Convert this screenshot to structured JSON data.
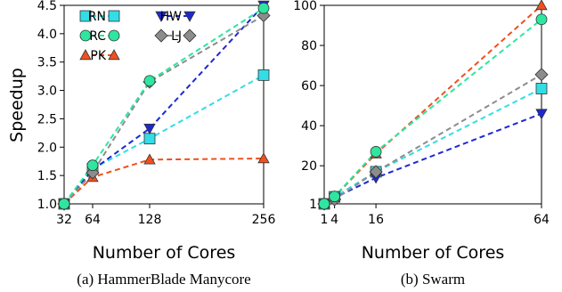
{
  "colors": {
    "RN": "#33dde6",
    "RC": "#2ee6a0",
    "PK": "#f0501e",
    "HW": "#1e28d2",
    "LJ": "#8c8c8c"
  },
  "chart_data": [
    {
      "type": "line",
      "caption": "(a) HammerBlade Manycore",
      "xlabel": "Number of Cores",
      "ylabel": "Speedup",
      "xlim": [
        32,
        256
      ],
      "ylim": [
        1.0,
        4.5
      ],
      "xticks": [
        "32",
        "64",
        "128",
        "256"
      ],
      "xtick_values": [
        32,
        64,
        128,
        256
      ],
      "yticks": [
        "1.0",
        "1.5",
        "2.0",
        "2.5",
        "3.0",
        "3.5",
        "4.0",
        "4.5"
      ],
      "ytick_values": [
        1.0,
        1.5,
        2.0,
        2.5,
        3.0,
        3.5,
        4.0,
        4.5
      ],
      "x": [
        32,
        64,
        128,
        256
      ],
      "legend": "top-left",
      "series": [
        {
          "name": "RN",
          "marker": "square",
          "values": [
            1.0,
            1.62,
            2.15,
            3.27
          ]
        },
        {
          "name": "RC",
          "marker": "circle",
          "values": [
            1.0,
            1.68,
            3.17,
            4.45
          ]
        },
        {
          "name": "PK",
          "marker": "triangle-up",
          "values": [
            1.0,
            1.47,
            1.78,
            1.8
          ]
        },
        {
          "name": "HW",
          "marker": "triangle-down",
          "values": [
            1.0,
            1.6,
            2.33,
            4.5
          ]
        },
        {
          "name": "LJ",
          "marker": "diamond",
          "values": [
            1.0,
            1.55,
            3.15,
            4.32
          ]
        }
      ]
    },
    {
      "type": "line",
      "caption": "(b) Swarm",
      "xlabel": "Number of Cores",
      "ylabel": "",
      "xlim": [
        1,
        64
      ],
      "ylim": [
        1,
        100
      ],
      "xticks": [
        "1",
        "4",
        "16",
        "64"
      ],
      "xtick_values": [
        1,
        4,
        16,
        64
      ],
      "yticks": [
        "1",
        "20",
        "40",
        "60",
        "80",
        "100"
      ],
      "ytick_values": [
        1,
        20,
        40,
        60,
        80,
        100
      ],
      "x": [
        1,
        4,
        16,
        64
      ],
      "series": [
        {
          "name": "RN",
          "marker": "square",
          "values": [
            1,
            4.5,
            17,
            58.5
          ]
        },
        {
          "name": "RC",
          "marker": "circle",
          "values": [
            1,
            4.7,
            27,
            93
          ]
        },
        {
          "name": "PK",
          "marker": "triangle-up",
          "values": [
            1,
            4.6,
            26,
            100
          ]
        },
        {
          "name": "HW",
          "marker": "triangle-down",
          "values": [
            1,
            4.0,
            14,
            46
          ]
        },
        {
          "name": "LJ",
          "marker": "diamond",
          "values": [
            1,
            3.2,
            17,
            65.5
          ]
        }
      ]
    }
  ]
}
